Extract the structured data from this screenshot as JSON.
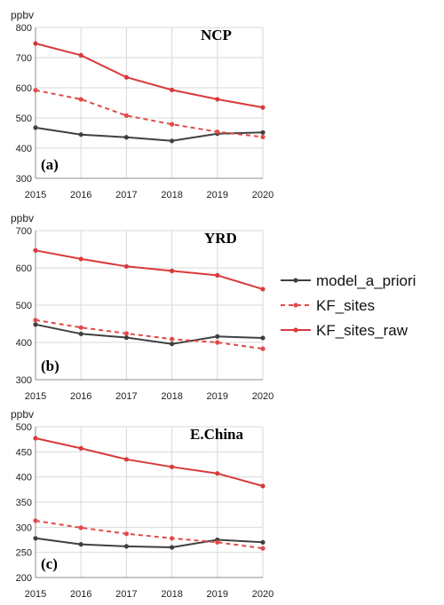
{
  "legend": {
    "model": "model_a_priori",
    "kf_sites": "KF_sites",
    "kf_sites_raw": "KF_sites_raw"
  },
  "colors": {
    "model": "#404040",
    "kf_sites": "#e04a4a",
    "kf_sites_raw": "#d93a3a",
    "grid": "#d9d9d9",
    "axis": "#8c8c8c"
  },
  "chart_data": [
    {
      "type": "line",
      "title": "NCP",
      "panel_label": "(a)",
      "ylabel": "ppbv",
      "x": [
        2015,
        2016,
        2017,
        2018,
        2019,
        2020
      ],
      "ylim": [
        300,
        800
      ],
      "yticks": [
        300,
        400,
        500,
        600,
        700,
        800
      ],
      "grid": true,
      "series": [
        {
          "name": "model_a_priori",
          "key": "model",
          "style": "solid",
          "values": [
            468,
            445,
            436,
            424,
            448,
            452
          ]
        },
        {
          "name": "KF_sites",
          "key": "kf_sites",
          "style": "dashed",
          "values": [
            592,
            562,
            508,
            479,
            454,
            437
          ]
        },
        {
          "name": "KF_sites_raw",
          "key": "kf_sites_raw",
          "style": "solid",
          "values": [
            747,
            708,
            635,
            593,
            562,
            535
          ]
        }
      ]
    },
    {
      "type": "line",
      "title": "YRD",
      "panel_label": "(b)",
      "ylabel": "ppbv",
      "x": [
        2015,
        2016,
        2017,
        2018,
        2019,
        2020
      ],
      "ylim": [
        300,
        700
      ],
      "yticks": [
        300,
        400,
        500,
        600,
        700
      ],
      "grid": true,
      "series": [
        {
          "name": "model_a_priori",
          "key": "model",
          "style": "solid",
          "values": [
            448,
            423,
            413,
            396,
            416,
            412
          ]
        },
        {
          "name": "KF_sites",
          "key": "kf_sites",
          "style": "dashed",
          "values": [
            460,
            440,
            424,
            409,
            400,
            383
          ]
        },
        {
          "name": "KF_sites_raw",
          "key": "kf_sites_raw",
          "style": "solid",
          "values": [
            647,
            624,
            604,
            592,
            580,
            543
          ]
        }
      ]
    },
    {
      "type": "line",
      "title": "E.China",
      "panel_label": "(c)",
      "ylabel": "ppbv",
      "x": [
        2015,
        2016,
        2017,
        2018,
        2019,
        2020
      ],
      "ylim": [
        200,
        500
      ],
      "yticks": [
        200,
        250,
        300,
        350,
        400,
        450,
        500
      ],
      "grid": true,
      "series": [
        {
          "name": "model_a_priori",
          "key": "model",
          "style": "solid",
          "values": [
            278,
            266,
            262,
            260,
            275,
            270
          ]
        },
        {
          "name": "KF_sites",
          "key": "kf_sites",
          "style": "dashed",
          "values": [
            313,
            299,
            287,
            278,
            270,
            258
          ]
        },
        {
          "name": "KF_sites_raw",
          "key": "kf_sites_raw",
          "style": "solid",
          "values": [
            477,
            457,
            435,
            420,
            407,
            382
          ]
        }
      ]
    }
  ]
}
